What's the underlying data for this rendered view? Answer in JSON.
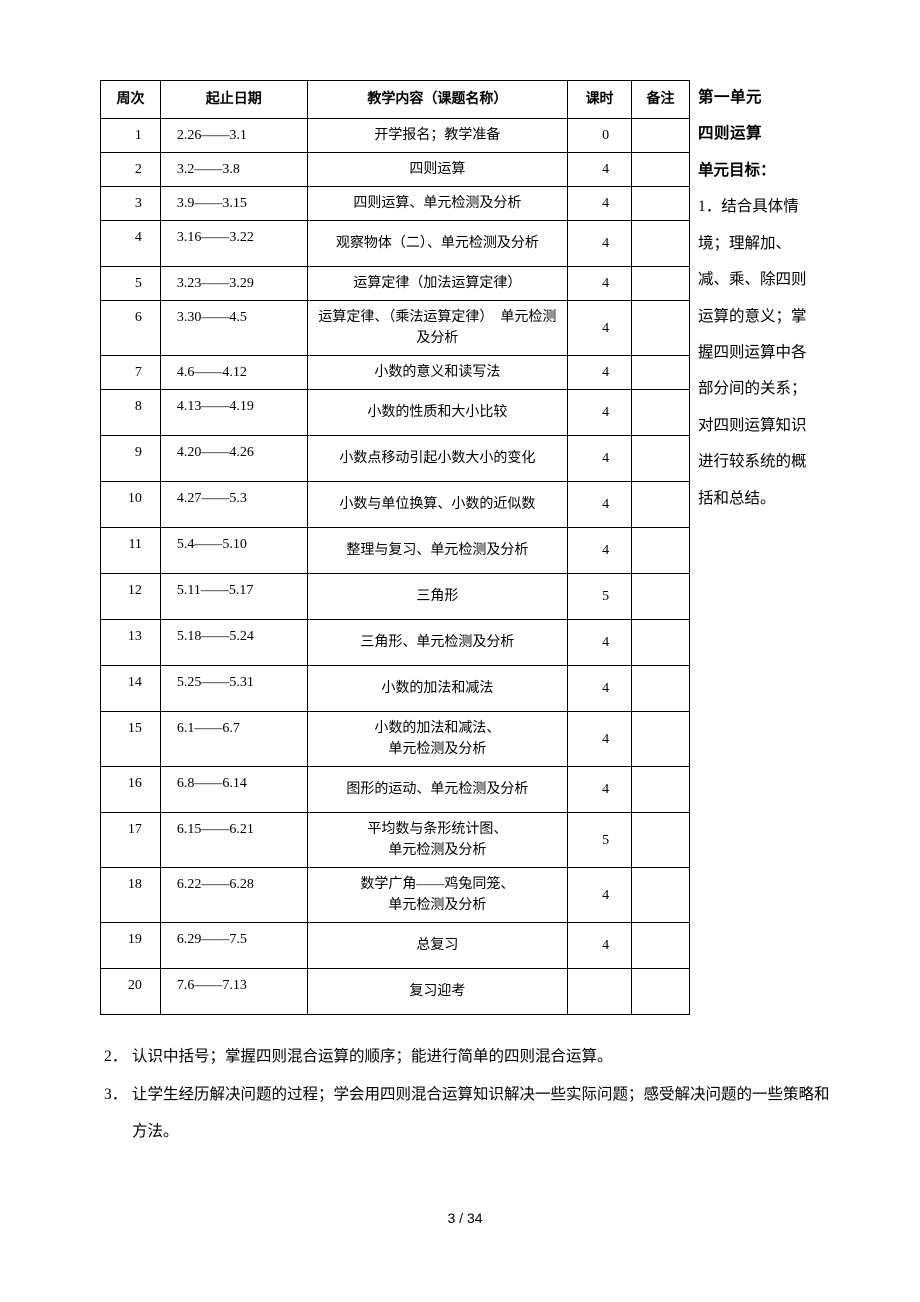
{
  "table": {
    "headers": [
      "周次",
      "起止日期",
      "教学内容（课题名称）",
      "课时",
      "备注"
    ],
    "rows": [
      {
        "week": "1",
        "date": "2.26——3.1",
        "content": "开学报名；教学准备",
        "hours": "0",
        "note": "",
        "cls": "short"
      },
      {
        "week": "2",
        "date": "3.2——3.8",
        "content": "四则运算",
        "hours": "4",
        "note": "",
        "cls": "short"
      },
      {
        "week": "3",
        "date": "3.9——3.15",
        "content": "四则运算、单元检测及分析",
        "hours": "4",
        "note": "",
        "cls": "short"
      },
      {
        "week": "4",
        "date": "3.16——3.22",
        "content": "观察物体（二）、单元检测及分析",
        "hours": "4",
        "note": "",
        "cls": "tall"
      },
      {
        "week": "5",
        "date": "3.23——3.29",
        "content": "运算定律（加法运算定律）",
        "hours": "4",
        "note": "",
        "cls": "short"
      },
      {
        "week": "6",
        "date": "3.30——4.5",
        "content": "运算定律、（乘法运算定律）　单元检测及分析",
        "hours": "4",
        "note": "",
        "cls": "tall"
      },
      {
        "week": "7",
        "date": "4.6——4.12",
        "content": "小数的意义和读写法",
        "hours": "4",
        "note": "",
        "cls": "short"
      },
      {
        "week": "8",
        "date": "4.13——4.19",
        "content": "小数的性质和大小比较",
        "hours": "4",
        "note": "",
        "cls": "tall"
      },
      {
        "week": "9",
        "date": "4.20——4.26",
        "content": "小数点移动引起小数大小的变化",
        "hours": "4",
        "note": "",
        "cls": "tall"
      },
      {
        "week": "10",
        "date": "4.27——5.3",
        "content": "小数与单位换算、小数的近似数",
        "hours": "4",
        "note": "",
        "cls": "tall"
      },
      {
        "week": "11",
        "date": "5.4——5.10",
        "content": "整理与复习、单元检测及分析",
        "hours": "4",
        "note": "",
        "cls": "tall"
      },
      {
        "week": "12",
        "date": "5.11——5.17",
        "content": "三角形",
        "hours": "5",
        "note": "",
        "cls": "tall"
      },
      {
        "week": "13",
        "date": "5.18——5.24",
        "content": "三角形、单元检测及分析",
        "hours": "4",
        "note": "",
        "cls": "tall"
      },
      {
        "week": "14",
        "date": "5.25——5.31",
        "content": "小数的加法和减法",
        "hours": "4",
        "note": "",
        "cls": "tall"
      },
      {
        "week": "15",
        "date": "6.1——6.7",
        "content": "小数的加法和减法、<br>单元检测及分析",
        "hours": "4",
        "note": "",
        "cls": "tall"
      },
      {
        "week": "16",
        "date": "6.8——6.14",
        "content": "图形的运动、单元检测及分析",
        "hours": "4",
        "note": "",
        "cls": "tall"
      },
      {
        "week": "17",
        "date": "6.15——6.21",
        "content": "平均数与条形统计图、<br>单元检测及分析",
        "hours": "5",
        "note": "",
        "cls": "tall"
      },
      {
        "week": "18",
        "date": "6.22——6.28",
        "content": "数学广角——鸡兔同笼、<br>单元检测及分析",
        "hours": "4",
        "note": "",
        "cls": "tall"
      },
      {
        "week": "19",
        "date": "6.29——7.5",
        "content": "总复习",
        "hours": "4",
        "note": "",
        "cls": "tall"
      },
      {
        "week": "20",
        "date": "7.6——7.13",
        "content": "复习迎考",
        "hours": "",
        "note": "",
        "cls": "tall"
      }
    ]
  },
  "side": {
    "line1": "第一单元",
    "line2": "四则运算",
    "line3": "单元目标：",
    "item1_num": "1．",
    "item1_text": "结合具体情境；理解加、减、乘、除四则运算的意义；掌握四则运算中各部分间的关系；对四则运算知识进行较系统的概括和总结。"
  },
  "below": {
    "items": [
      {
        "num": "2．",
        "text": "认识中括号；掌握四则混合运算的顺序；能进行简单的四则混合运算。"
      },
      {
        "num": "3．",
        "text": "让学生经历解决问题的过程；学会用四则混合运算知识解决一些实际问题；感受解决问题的一些策略和方法。"
      }
    ]
  },
  "pagenum": "3 / 34"
}
